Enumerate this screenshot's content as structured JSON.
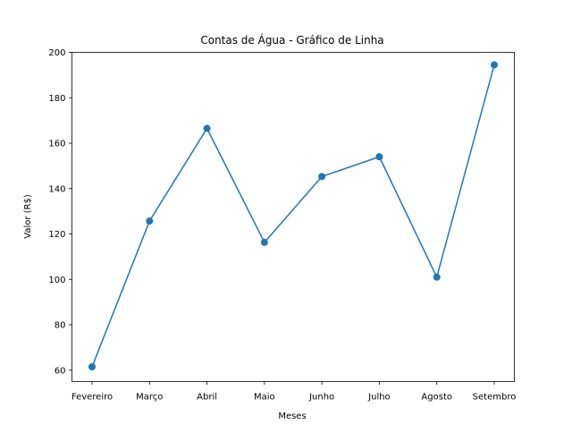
{
  "chart_data": {
    "type": "line",
    "title": "Contas de Água - Gráfico de Linha",
    "xlabel": "Meses",
    "ylabel": "Valor (R$)",
    "categories": [
      "Fevereiro",
      "Março",
      "Abril",
      "Maio",
      "Junho",
      "Julho",
      "Agosto",
      "Setembro"
    ],
    "series": [
      {
        "values": [
          61.5,
          125.7,
          166.5,
          116.3,
          145.3,
          154.0,
          101.0,
          194.5
        ],
        "color": "#1f77b4",
        "marker": "circle"
      }
    ],
    "ylim": [
      55,
      200
    ],
    "yticks": [
      60,
      80,
      100,
      120,
      140,
      160,
      180,
      200
    ],
    "grid": false,
    "legend": "none"
  }
}
